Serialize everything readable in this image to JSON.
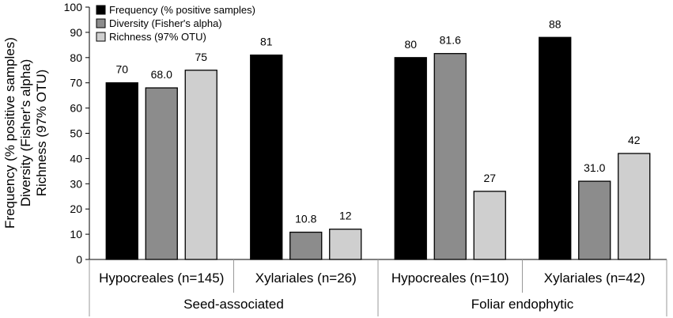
{
  "chart_data": {
    "type": "bar",
    "title": "",
    "ylabel_lines": [
      "Frequency (% positive samples)",
      "Diversity (Fisher's alpha)",
      "Richness (97% OTU)"
    ],
    "ylim": [
      0,
      100
    ],
    "yticks": [
      "0",
      "10",
      "20",
      "30",
      "40",
      "50",
      "60",
      "70",
      "80",
      "90",
      "100"
    ],
    "categories": [
      "Hypocreales (n=145)",
      "Xylariales (n=26)",
      "Hypocreales (n=10)",
      "Xylariales (n=42)"
    ],
    "groups": [
      {
        "label": "Seed-associated",
        "categories": [
          0,
          1
        ]
      },
      {
        "label": "Foliar endophytic",
        "categories": [
          2,
          3
        ]
      }
    ],
    "series": [
      {
        "name": "Frequency (% positive samples)",
        "color": "#000000",
        "values": [
          70,
          81,
          80,
          88
        ],
        "labels": [
          "70",
          "81",
          "80",
          "88"
        ]
      },
      {
        "name": "Diversity (Fisher's alpha)",
        "color": "#8c8c8c",
        "values": [
          68.0,
          10.8,
          81.6,
          31.0
        ],
        "labels": [
          "68.0",
          "10.8",
          "81.6",
          "31.0"
        ]
      },
      {
        "name": "Richness (97% OTU)",
        "color": "#cfcfcf",
        "values": [
          75,
          12,
          27,
          42
        ],
        "labels": [
          "75",
          "12",
          "27",
          "42"
        ]
      }
    ],
    "legend_position": "top-left"
  }
}
